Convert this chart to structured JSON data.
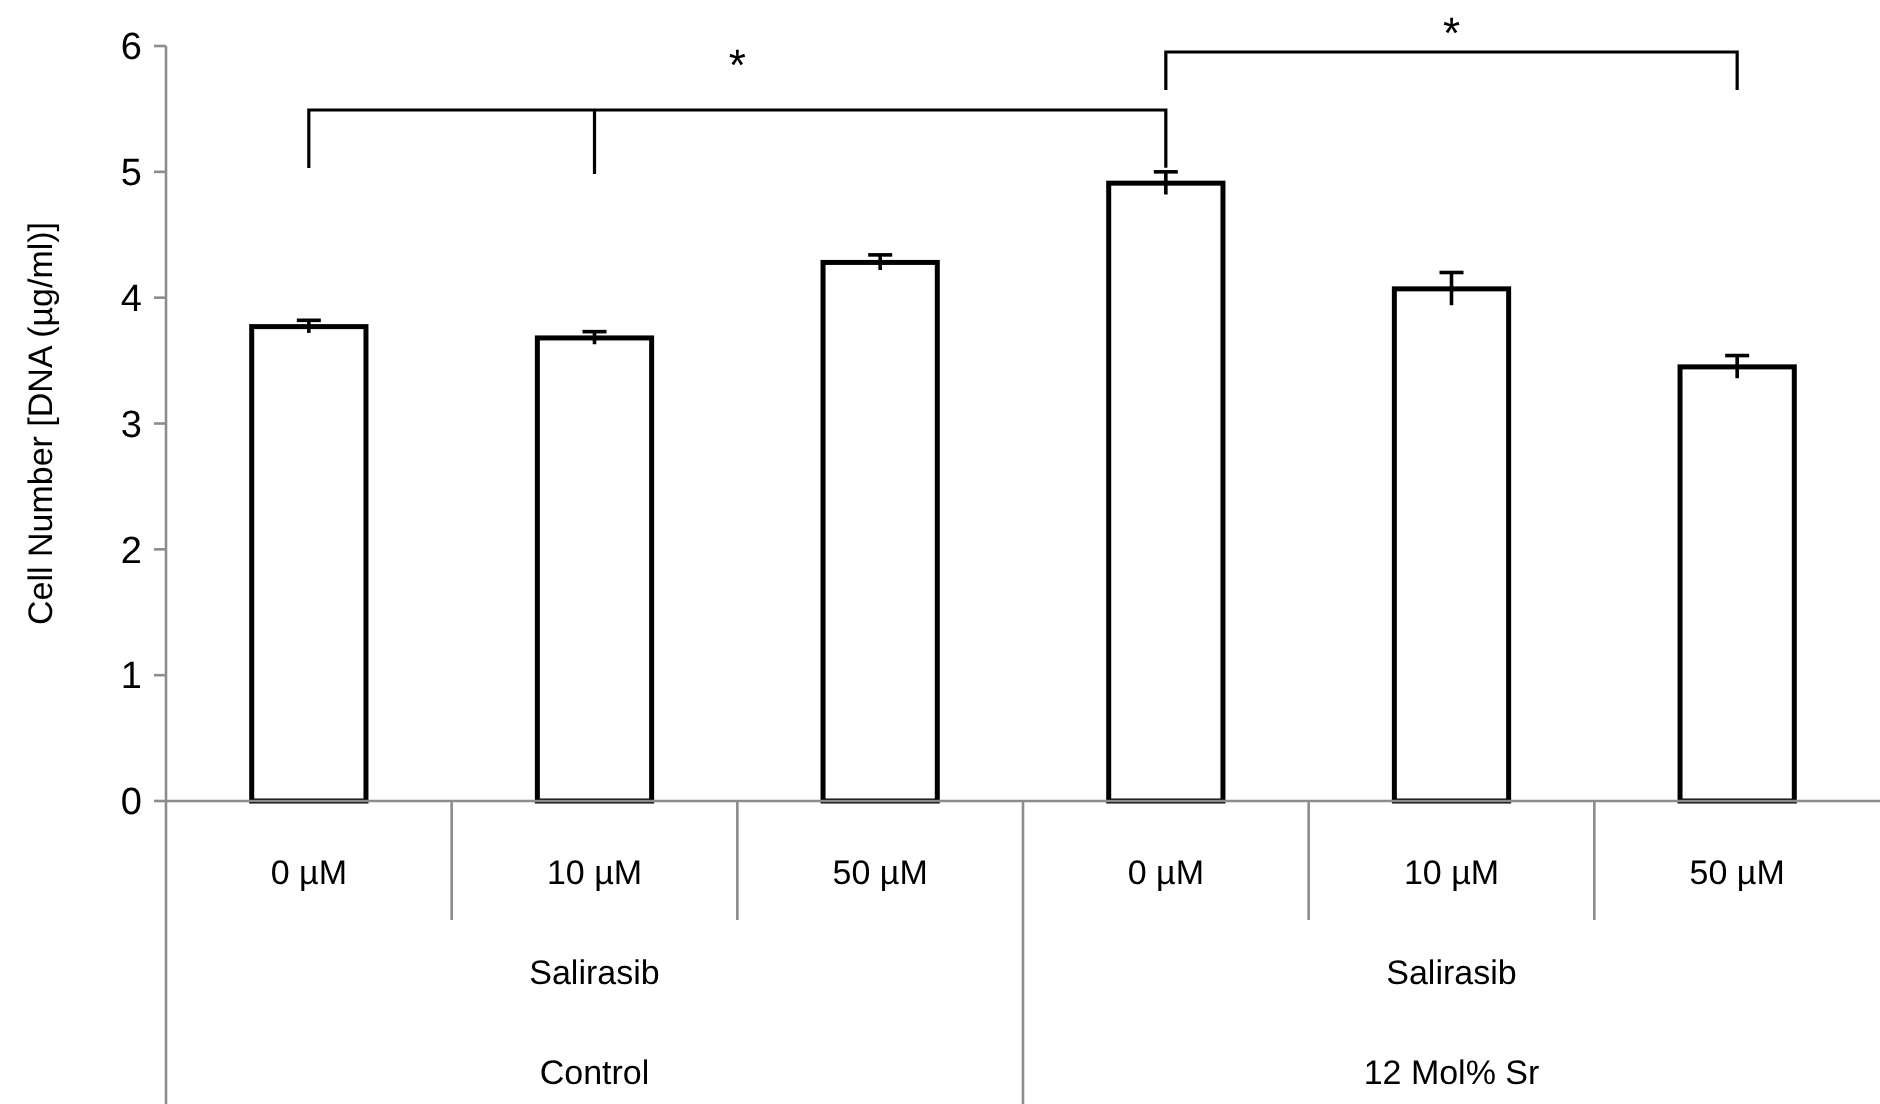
{
  "chart_data": {
    "type": "bar",
    "ylabel": "Cell Number [DNA (µg/ml)]",
    "categories": [
      "0 µM",
      "10 µM",
      "50 µM",
      "0 µM",
      "10 µM",
      "50 µM"
    ],
    "values": [
      3.77,
      3.68,
      4.28,
      4.91,
      4.07,
      3.45
    ],
    "errors": [
      0.05,
      0.05,
      0.06,
      0.09,
      0.13,
      0.09
    ],
    "color": "#ffffff",
    "ylim": [
      0,
      6
    ],
    "yticks": [
      0,
      1,
      2,
      3,
      4,
      5,
      6
    ],
    "grid": false,
    "annotations": [
      "*",
      "*",
      "Salirasib",
      "Salirasib",
      "Control",
      "12 Mol% Sr"
    ]
  }
}
